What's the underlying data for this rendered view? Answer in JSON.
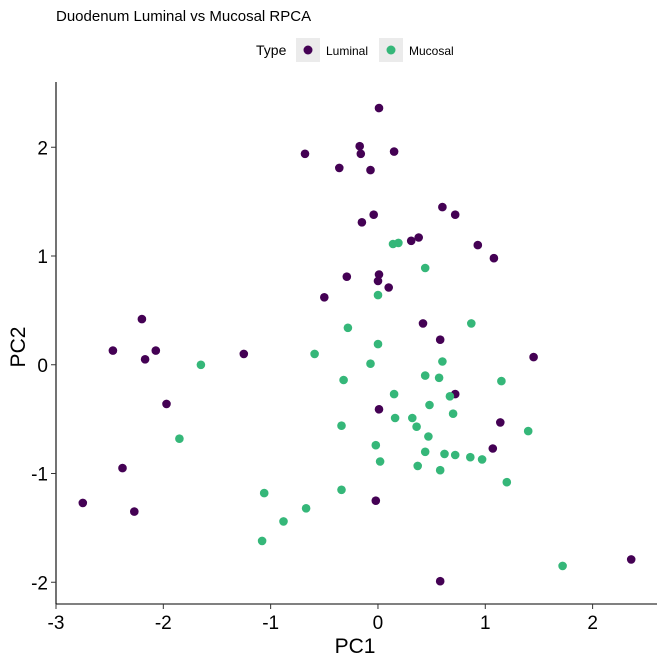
{
  "chart_data": {
    "type": "scatter",
    "title": "Duodenum Luminal vs Mucosal RPCA",
    "xlabel": "PC1",
    "ylabel": "PC2",
    "xlim": [
      -3.0,
      2.6
    ],
    "ylim": [
      -2.2,
      2.6
    ],
    "x_ticks": [
      -3,
      -2,
      -1,
      0,
      1,
      2
    ],
    "y_ticks": [
      -2,
      -1,
      0,
      1,
      2
    ],
    "grid": false,
    "legend": {
      "title": "Type",
      "position": "top"
    },
    "series": [
      {
        "name": "Luminal",
        "color": "#440154",
        "points": [
          [
            0.01,
            2.36
          ],
          [
            -0.17,
            2.01
          ],
          [
            -0.16,
            1.94
          ],
          [
            0.15,
            1.96
          ],
          [
            -0.68,
            1.94
          ],
          [
            -0.36,
            1.81
          ],
          [
            -0.07,
            1.79
          ],
          [
            0.6,
            1.45
          ],
          [
            0.72,
            1.38
          ],
          [
            -0.04,
            1.38
          ],
          [
            -0.15,
            1.31
          ],
          [
            0.38,
            1.17
          ],
          [
            0.31,
            1.14
          ],
          [
            0.93,
            1.1
          ],
          [
            1.08,
            0.98
          ],
          [
            0.01,
            0.83
          ],
          [
            -0.29,
            0.81
          ],
          [
            0.0,
            0.77
          ],
          [
            0.1,
            0.71
          ],
          [
            -0.5,
            0.62
          ],
          [
            0.42,
            0.38
          ],
          [
            0.58,
            0.23
          ],
          [
            1.45,
            0.07
          ],
          [
            -1.25,
            0.1
          ],
          [
            0.72,
            -0.27
          ],
          [
            1.14,
            -0.53
          ],
          [
            1.07,
            -0.77
          ],
          [
            0.01,
            -0.41
          ],
          [
            -2.2,
            0.42
          ],
          [
            -2.47,
            0.13
          ],
          [
            -2.07,
            0.13
          ],
          [
            -2.17,
            0.05
          ],
          [
            -1.97,
            -0.36
          ],
          [
            -2.38,
            -0.95
          ],
          [
            -2.75,
            -1.27
          ],
          [
            -2.27,
            -1.35
          ],
          [
            -0.02,
            -1.25
          ],
          [
            0.58,
            -1.99
          ],
          [
            2.36,
            -1.79
          ]
        ]
      },
      {
        "name": "Mucosal",
        "color": "#35b779",
        "points": [
          [
            0.14,
            1.11
          ],
          [
            0.19,
            1.12
          ],
          [
            0.44,
            0.89
          ],
          [
            0.0,
            0.64
          ],
          [
            0.87,
            0.38
          ],
          [
            -0.28,
            0.34
          ],
          [
            0.0,
            0.19
          ],
          [
            -0.59,
            0.1
          ],
          [
            0.6,
            0.03
          ],
          [
            -0.07,
            0.01
          ],
          [
            -1.65,
            0.0
          ],
          [
            0.44,
            -0.1
          ],
          [
            0.57,
            -0.12
          ],
          [
            1.15,
            -0.15
          ],
          [
            -0.32,
            -0.14
          ],
          [
            0.15,
            -0.27
          ],
          [
            0.67,
            -0.29
          ],
          [
            0.48,
            -0.37
          ],
          [
            0.16,
            -0.49
          ],
          [
            0.32,
            -0.49
          ],
          [
            0.7,
            -0.45
          ],
          [
            0.36,
            -0.57
          ],
          [
            -0.34,
            -0.56
          ],
          [
            0.47,
            -0.66
          ],
          [
            1.4,
            -0.61
          ],
          [
            -1.85,
            -0.68
          ],
          [
            -0.02,
            -0.74
          ],
          [
            0.44,
            -0.8
          ],
          [
            0.62,
            -0.82
          ],
          [
            0.72,
            -0.83
          ],
          [
            0.86,
            -0.85
          ],
          [
            0.97,
            -0.87
          ],
          [
            0.02,
            -0.89
          ],
          [
            0.37,
            -0.93
          ],
          [
            0.58,
            -0.97
          ],
          [
            1.2,
            -1.08
          ],
          [
            -1.06,
            -1.18
          ],
          [
            -0.34,
            -1.15
          ],
          [
            -0.67,
            -1.32
          ],
          [
            -0.88,
            -1.44
          ],
          [
            -1.08,
            -1.62
          ],
          [
            1.72,
            -1.85
          ]
        ]
      }
    ]
  }
}
